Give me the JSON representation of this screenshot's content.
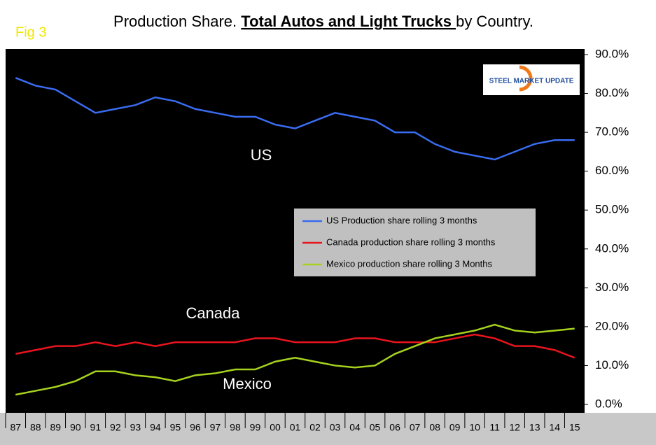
{
  "chart_data": {
    "type": "line",
    "fig_label": "Fig 3",
    "title_parts": [
      "Production Share. ",
      "Total Autos and Light Trucks ",
      "by Country."
    ],
    "logo": "STEEL MARKET UPDATE",
    "annotations": [
      "US",
      "Canada",
      "Mexico"
    ],
    "categories": [
      "87",
      "88",
      "89",
      "90",
      "91",
      "92",
      "93",
      "94",
      "95",
      "96",
      "97",
      "98",
      "99",
      "00",
      "01",
      "02",
      "03",
      "04",
      "05",
      "06",
      "07",
      "08",
      "09",
      "10",
      "11",
      "12",
      "13",
      "14",
      "15"
    ],
    "series": [
      {
        "name": "US Production share rolling 3 months",
        "color": "#3a6cf0",
        "values": [
          84,
          82,
          81,
          78,
          75,
          76,
          77,
          79,
          78,
          76,
          75,
          74,
          74,
          72,
          71,
          73,
          75,
          74,
          73,
          70,
          70,
          67,
          65,
          64,
          63,
          65,
          67,
          68,
          68
        ]
      },
      {
        "name": "Canada production share rolling 3 months",
        "color": "#e8141e",
        "values": [
          13,
          14,
          15,
          15,
          16,
          15,
          16,
          15,
          16,
          16,
          16,
          16,
          17,
          17,
          16,
          16,
          16,
          17,
          17,
          16,
          16,
          16,
          17,
          18,
          17,
          15,
          15,
          14,
          12
        ]
      },
      {
        "name": "Mexico production share rolling 3 Months",
        "color": "#a6d21e",
        "values": [
          2.5,
          3.5,
          4.5,
          6,
          8.5,
          8.5,
          7.5,
          7,
          6,
          7.5,
          8,
          9,
          9,
          11,
          12,
          11,
          10,
          9.5,
          10,
          13,
          15,
          17,
          18,
          19,
          20.5,
          19,
          18.5,
          19,
          19.5
        ]
      }
    ],
    "ylim": [
      0,
      90
    ],
    "yticks": [
      {
        "value": 0,
        "label": "0.0%"
      },
      {
        "value": 10,
        "label": "10.0%"
      },
      {
        "value": 20,
        "label": "20.0%"
      },
      {
        "value": 30,
        "label": "30.0%"
      },
      {
        "value": 40,
        "label": "40.0%"
      },
      {
        "value": 50,
        "label": "50.0%"
      },
      {
        "value": 60,
        "label": "60.0%"
      },
      {
        "value": 70,
        "label": "70.0%"
      },
      {
        "value": 80,
        "label": "80.0%"
      },
      {
        "value": 90,
        "label": "90.0%"
      }
    ],
    "grid": false,
    "legend": "center-right"
  }
}
